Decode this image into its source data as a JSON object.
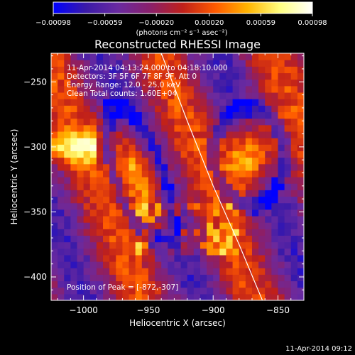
{
  "chart_data": {
    "type": "heatmap",
    "title": "Reconstructed RHESSI Image",
    "xlabel": "Heliocentric X (arcsec)",
    "ylabel": "Heliocentric Y (arcsec)",
    "xlim": [
      -1025,
      -830
    ],
    "ylim": [
      -418,
      -228
    ],
    "x_ticks": [
      -1000,
      -950,
      -900,
      -850
    ],
    "x_tick_labels": [
      "−1000",
      "−950",
      "−900",
      "−850"
    ],
    "y_ticks": [
      -250,
      -300,
      -350,
      -400
    ],
    "y_tick_labels": [
      "−250",
      "−300",
      "−350",
      "−400"
    ],
    "colorbar": {
      "range": [
        -0.00098,
        0.00098
      ],
      "ticks": [
        -0.00098,
        -0.00059,
        -0.0002,
        0.0002,
        0.00059,
        0.00098
      ],
      "tick_labels": [
        "−0.00098",
        "−0.00059",
        "−0.00020",
        "0.00020",
        "0.00059",
        "0.00098"
      ],
      "unit_label": "(photons cm⁻² s⁻¹ asec⁻²)",
      "colormap": [
        "#0000ff",
        "#3a1aa8",
        "#6a2aa0",
        "#8a1f6a",
        "#c0201a",
        "#ff5a00",
        "#ffb400",
        "#ffff80",
        "#ffffff"
      ]
    },
    "sources": [
      {
        "x": -957,
        "y": -322,
        "peak": 0.00098
      },
      {
        "x": -872,
        "y": -307,
        "peak": 0.00098
      }
    ],
    "limb_curve": [
      [
        -940,
        -228
      ],
      [
        -920,
        -280
      ],
      [
        -900,
        -330
      ],
      [
        -880,
        -375
      ],
      [
        -862,
        -418
      ]
    ],
    "info_lines": [
      "11-Apr-2014 04:13:24.000 to 04:18:10.000",
      "Detectors: 3F 5F 6F 7F 8F 9F, Att 0",
      "Energy Range: 12.0 - 25.0 keV",
      "Clean     Total counts: 1.60E+04"
    ],
    "peak_label": "Position of Peak = [-872,-307]",
    "timestamp": "11-Apr-2014 09:12"
  }
}
